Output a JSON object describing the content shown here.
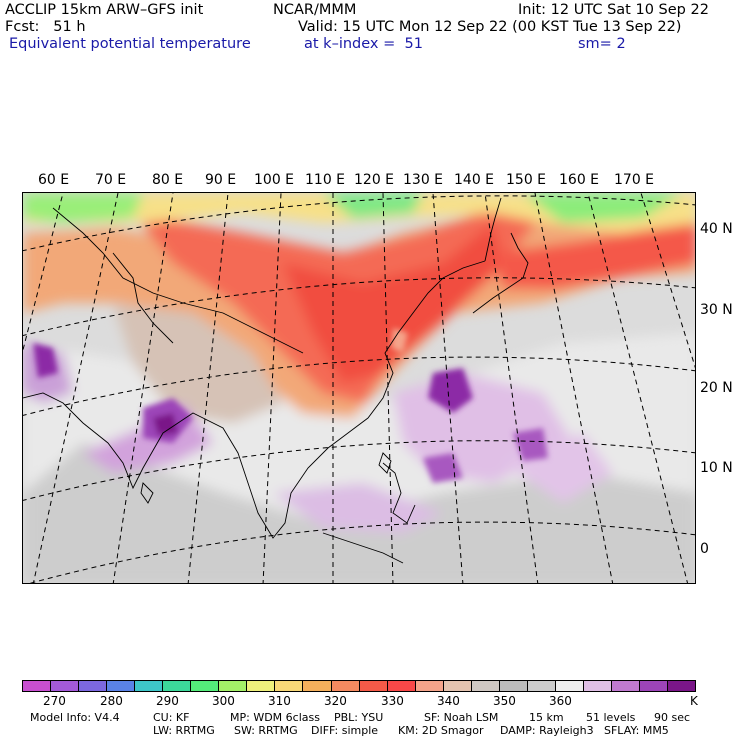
{
  "header": {
    "line1_left": "ACCLIP 15km ARW–GFS init",
    "line1_center": "NCAR/MMM",
    "line1_right": "Init: 12 UTC Sat 10 Sep 22",
    "line2_left": "Fcst:   51 h",
    "line2_right": "Valid: 15 UTC Mon 12 Sep 22 (00 KST Tue 13 Sep 22)",
    "line3_left": "Equivalent potential temperature",
    "line3_center": "at k–index =  51",
    "line3_right": "sm= 2"
  },
  "longitudes": [
    "60 E",
    "70 E",
    "80 E",
    "90 E",
    "100 E",
    "110 E",
    "120 E",
    "130 E",
    "140 E",
    "150 E",
    "160 E",
    "170 E"
  ],
  "latitudes": [
    "40 N",
    "30 N",
    "20 N",
    "10 N",
    "0"
  ],
  "colorbar": {
    "colors": [
      "#c84fd0",
      "#a45ad8",
      "#7c68e0",
      "#5a82e6",
      "#3ec6c8",
      "#3cd89a",
      "#54ec7a",
      "#a4f068",
      "#eef07c",
      "#f8d878",
      "#f4b05c",
      "#f48a60",
      "#f45a48",
      "#f84848",
      "#f4a48a",
      "#e4c4b0",
      "#d0c8c2",
      "#bcbcbc",
      "#cccccc",
      "#eeeeee",
      "#e0c0e6",
      "#c07ad0",
      "#9c44b8",
      "#7a1688"
    ],
    "labels": [
      "270",
      "280",
      "290",
      "300",
      "310",
      "320",
      "330",
      "340",
      "350",
      "360",
      "K"
    ]
  },
  "footer": {
    "line1": [
      "Model Info: V4.4",
      "CU: KF",
      "MP: WDM 6class",
      "PBL: YSU",
      "SF: Noah LSM",
      "15 km",
      "51 levels",
      "90 sec"
    ],
    "line2": [
      "LW: RRTMG",
      "SW: RRTMG",
      "DIFF: simple",
      "KM: 2D Smagor",
      "DAMP: Rayleigh3",
      "SFLAY: MM5"
    ]
  }
}
